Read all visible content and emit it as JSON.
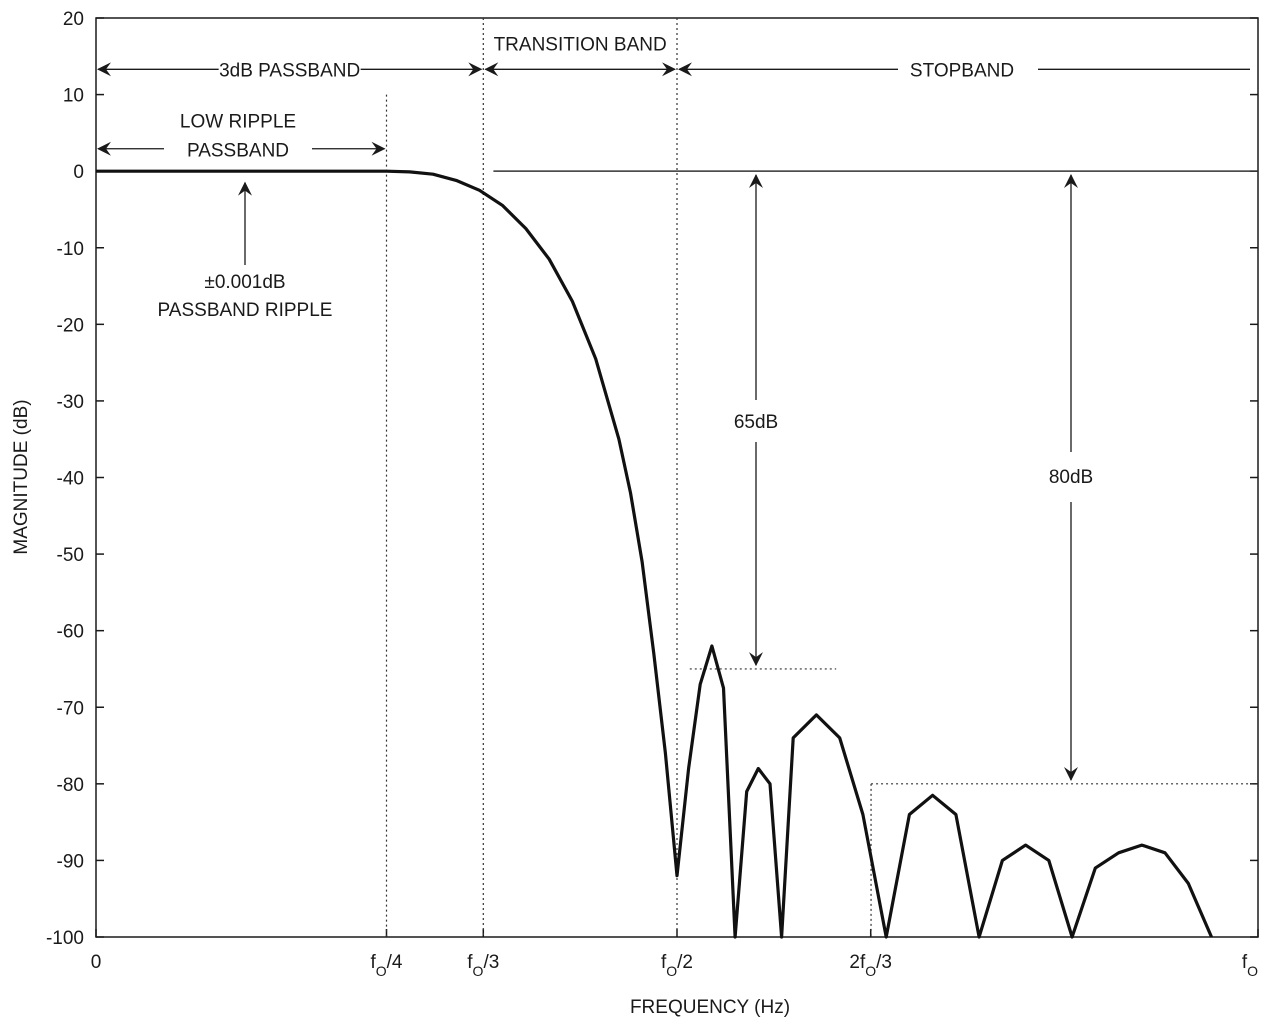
{
  "chart_data": {
    "type": "line",
    "xlabel": "FREQUENCY (Hz)",
    "ylabel": "MAGNITUDE (dB)",
    "xlim": [
      0,
      1
    ],
    "ylim": [
      -100,
      20
    ],
    "grid": false,
    "y_ticks": [
      {
        "value": 20,
        "label": "20"
      },
      {
        "value": 10,
        "label": "10"
      },
      {
        "value": 0,
        "label": "0"
      },
      {
        "value": -10,
        "label": "-10"
      },
      {
        "value": -20,
        "label": "-20"
      },
      {
        "value": -30,
        "label": "-30"
      },
      {
        "value": -40,
        "label": "-40"
      },
      {
        "value": -50,
        "label": "-50"
      },
      {
        "value": -60,
        "label": "-60"
      },
      {
        "value": -70,
        "label": "-70"
      },
      {
        "value": -80,
        "label": "-80"
      },
      {
        "value": -90,
        "label": "-90"
      },
      {
        "value": -100,
        "label": "-100"
      }
    ],
    "x_ticks": [
      {
        "value": 0,
        "main": "0",
        "sub": "",
        "tail": ""
      },
      {
        "value": 0.25,
        "main": "f",
        "sub": "O",
        "tail": "/4"
      },
      {
        "value": 0.3333,
        "main": "f",
        "sub": "O",
        "tail": "/3"
      },
      {
        "value": 0.5,
        "main": "f",
        "sub": "O",
        "tail": "/2"
      },
      {
        "value": 0.6667,
        "main": "2f",
        "sub": "O",
        "tail": "/3"
      },
      {
        "value": 1,
        "main": "f",
        "sub": "O",
        "tail": ""
      }
    ],
    "series": [
      {
        "x": [
          0,
          0.05,
          0.1,
          0.15,
          0.2,
          0.25,
          0.27,
          0.29,
          0.31,
          0.33,
          0.35,
          0.37,
          0.39,
          0.41,
          0.43,
          0.45,
          0.46,
          0.47,
          0.48,
          0.49,
          0.5,
          0.51,
          0.52,
          0.53,
          0.54,
          0.55,
          0.56,
          0.57,
          0.58,
          0.59,
          0.6,
          0.62,
          0.64,
          0.66,
          0.68,
          0.7,
          0.72,
          0.74,
          0.76,
          0.78,
          0.8,
          0.82,
          0.84,
          0.86,
          0.88,
          0.9,
          0.92,
          0.94,
          0.96
        ],
        "y": [
          0,
          0,
          0,
          0,
          0,
          0,
          -0.1,
          -0.4,
          -1.2,
          -2.5,
          -4.5,
          -7.5,
          -11.5,
          -17,
          -24.5,
          -35,
          -42,
          -51,
          -63,
          -76,
          -92,
          -78,
          -67,
          -62,
          -67.5,
          -100,
          -81,
          -78,
          -80,
          -100,
          -74,
          -71,
          -74,
          -84,
          -100,
          -84,
          -81.5,
          -84,
          -100,
          -90,
          -88,
          -90,
          -100,
          -91,
          -89,
          -88,
          -89,
          -93,
          -100
        ]
      }
    ],
    "series_note": "",
    "spans": [
      {
        "label": "3dB PASSBAND",
        "from": 0,
        "to": 0.3333,
        "level": 13.3
      },
      {
        "label": "TRANSITION BAND",
        "from": 0.3333,
        "to": 0.5,
        "level": 13.3
      },
      {
        "label": "STOPBAND",
        "from": 0.5,
        "to": 1,
        "level": 13.3
      },
      {
        "label_lines": [
          "LOW RIPPLE",
          "PASSBAND"
        ],
        "from": 0,
        "to": 0.25,
        "level": 5.8
      }
    ],
    "annotations": {
      "ripple_lines": [
        "±0.001dB",
        "PASSBAND RIPPLE"
      ],
      "atten_65": "65dB",
      "atten_80": "80dB"
    },
    "reference_levels": [
      {
        "name": "65dB",
        "value": -65,
        "from": 0.511,
        "to": 0.637
      },
      {
        "name": "80dB",
        "value": -80,
        "from": 0.667,
        "to": 1
      }
    ]
  }
}
